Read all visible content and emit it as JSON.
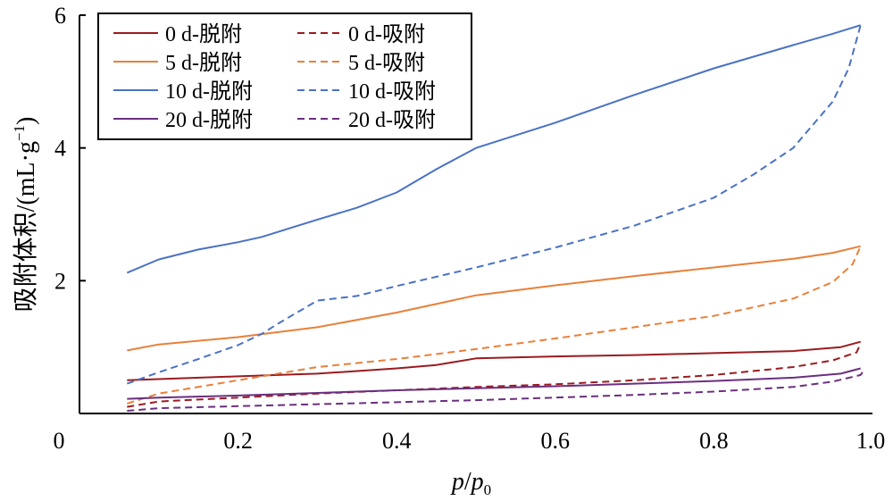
{
  "chart_data": {
    "type": "line",
    "title": "",
    "xlabel": {
      "var_p": "p",
      "slash": "/",
      "var_p0": "p",
      "sub": "0"
    },
    "ylabel": {
      "main": "吸附体积/(mL·g",
      "sup": "−1",
      "close": ")"
    },
    "xlim": [
      0,
      1.0
    ],
    "ylim": [
      0,
      6
    ],
    "x_ticks": [
      {
        "value": 0,
        "label": "0"
      },
      {
        "value": 0.2,
        "label": "0.2"
      },
      {
        "value": 0.4,
        "label": "0.4"
      },
      {
        "value": 0.6,
        "label": "0.6"
      },
      {
        "value": 0.8,
        "label": "0.8"
      },
      {
        "value": 1.0,
        "label": "1.0"
      }
    ],
    "y_ticks": [
      {
        "value": 2,
        "label": "2"
      },
      {
        "value": 4,
        "label": "4"
      },
      {
        "value": 6,
        "label": "6"
      }
    ],
    "grid": false,
    "legend": {
      "placement": "top-left",
      "columns": 2
    },
    "series": [
      {
        "name": "0 d-脱附",
        "color": "#9b1b1f",
        "dash": "solid",
        "x": [
          0.06,
          0.2,
          0.3,
          0.4,
          0.45,
          0.5,
          0.6,
          0.7,
          0.8,
          0.9,
          0.96,
          0.985
        ],
        "y": [
          0.5,
          0.56,
          0.6,
          0.68,
          0.73,
          0.83,
          0.86,
          0.88,
          0.91,
          0.94,
          1.0,
          1.08
        ]
      },
      {
        "name": "0 d-吸附",
        "color": "#9b1b1f",
        "dash": "dashed",
        "x": [
          0.06,
          0.1,
          0.2,
          0.3,
          0.4,
          0.5,
          0.6,
          0.7,
          0.8,
          0.9,
          0.95,
          0.98,
          0.985
        ],
        "y": [
          0.1,
          0.18,
          0.24,
          0.3,
          0.35,
          0.4,
          0.44,
          0.5,
          0.58,
          0.7,
          0.8,
          0.92,
          1.05
        ]
      },
      {
        "name": "5 d-脱附",
        "color": "#e8803a",
        "dash": "solid",
        "x": [
          0.06,
          0.1,
          0.2,
          0.3,
          0.4,
          0.5,
          0.6,
          0.7,
          0.8,
          0.9,
          0.95,
          0.985
        ],
        "y": [
          0.95,
          1.04,
          1.15,
          1.3,
          1.52,
          1.78,
          1.93,
          2.07,
          2.2,
          2.33,
          2.42,
          2.52
        ]
      },
      {
        "name": "5 d-吸附",
        "color": "#e8803a",
        "dash": "dashed",
        "x": [
          0.06,
          0.1,
          0.2,
          0.3,
          0.4,
          0.5,
          0.6,
          0.7,
          0.8,
          0.9,
          0.95,
          0.975,
          0.985
        ],
        "y": [
          0.15,
          0.3,
          0.5,
          0.7,
          0.82,
          0.97,
          1.13,
          1.3,
          1.47,
          1.73,
          1.98,
          2.25,
          2.52
        ]
      },
      {
        "name": "10 d-脱附",
        "color": "#4a72c4",
        "dash": "solid",
        "x": [
          0.06,
          0.1,
          0.15,
          0.2,
          0.23,
          0.3,
          0.35,
          0.4,
          0.45,
          0.5,
          0.6,
          0.7,
          0.8,
          0.9,
          0.95,
          0.985
        ],
        "y": [
          2.12,
          2.32,
          2.47,
          2.58,
          2.66,
          2.92,
          3.1,
          3.33,
          3.68,
          4.0,
          4.38,
          4.8,
          5.2,
          5.55,
          5.72,
          5.85
        ]
      },
      {
        "name": "10 d-吸附",
        "color": "#4a72c4",
        "dash": "dashed",
        "x": [
          0.06,
          0.1,
          0.15,
          0.2,
          0.23,
          0.25,
          0.3,
          0.35,
          0.4,
          0.5,
          0.6,
          0.7,
          0.8,
          0.85,
          0.9,
          0.95,
          0.97,
          0.985
        ],
        "y": [
          0.45,
          0.62,
          0.82,
          1.03,
          1.2,
          1.35,
          1.7,
          1.77,
          1.92,
          2.2,
          2.5,
          2.83,
          3.25,
          3.6,
          4.0,
          4.7,
          5.2,
          5.85
        ]
      },
      {
        "name": "20 d-脱附",
        "color": "#6a2f7f",
        "dash": "solid",
        "x": [
          0.06,
          0.1,
          0.2,
          0.3,
          0.4,
          0.5,
          0.6,
          0.7,
          0.8,
          0.9,
          0.96,
          0.985
        ],
        "y": [
          0.22,
          0.24,
          0.27,
          0.31,
          0.35,
          0.38,
          0.41,
          0.45,
          0.49,
          0.54,
          0.6,
          0.68
        ]
      },
      {
        "name": "20 d-吸附",
        "color": "#6a2f7f",
        "dash": "dashed",
        "x": [
          0.06,
          0.1,
          0.2,
          0.3,
          0.4,
          0.5,
          0.6,
          0.7,
          0.8,
          0.9,
          0.95,
          0.985,
          0.99
        ],
        "y": [
          0.04,
          0.08,
          0.11,
          0.14,
          0.17,
          0.2,
          0.24,
          0.28,
          0.33,
          0.4,
          0.48,
          0.58,
          0.67
        ]
      }
    ]
  }
}
